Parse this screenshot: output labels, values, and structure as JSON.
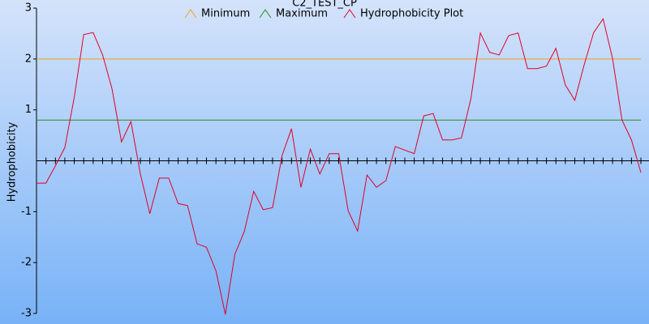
{
  "chart_data": {
    "type": "line",
    "title": "C2_TEST_CP",
    "y_label": "Hydrophobicity",
    "ylim": [
      -3,
      3
    ],
    "yticks": [
      -3,
      -2,
      -1,
      1,
      2,
      3
    ],
    "series": [
      {
        "name": "Minimum",
        "color": "#f0a020",
        "value": 2
      },
      {
        "name": "Maximum",
        "color": "#2a8a2a",
        "value": 0.8
      },
      {
        "name": "Hydrophobicity Plot",
        "color": "#e0002a",
        "values": [
          -0.44,
          -0.44,
          -0.1,
          0.26,
          1.25,
          2.48,
          2.52,
          2.08,
          1.41,
          0.37,
          0.77,
          -0.26,
          -1.04,
          -0.34,
          -0.34,
          -0.84,
          -0.88,
          -1.63,
          -1.7,
          -2.16,
          -3.02,
          -1.84,
          -1.39,
          -0.6,
          -0.96,
          -0.92,
          0.1,
          0.63,
          -0.52,
          0.23,
          -0.26,
          0.14,
          0.14,
          -0.98,
          -1.38,
          -0.28,
          -0.52,
          -0.39,
          0.28,
          0.21,
          0.14,
          0.88,
          0.93,
          0.41,
          0.41,
          0.45,
          1.22,
          2.51,
          2.13,
          2.08,
          2.46,
          2.51,
          1.81,
          1.81,
          1.86,
          2.21,
          1.49,
          1.19,
          1.89,
          2.52,
          2.79,
          2.01,
          0.8,
          0.41,
          -0.23
        ]
      }
    ]
  }
}
